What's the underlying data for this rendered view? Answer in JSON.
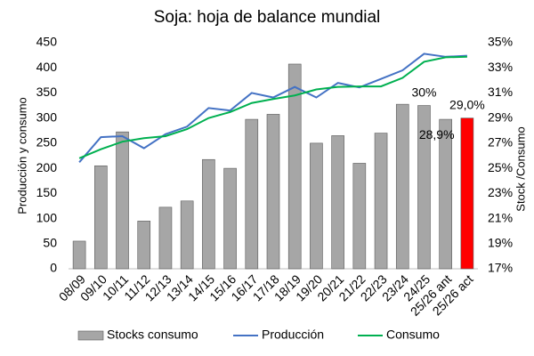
{
  "chart_data": {
    "type": "bar_line",
    "title": "Soja: hoja de balance mundial",
    "y_label": "Producción y consumo",
    "y2_label": "Stock /Consumo",
    "categories": [
      "08/09",
      "09/10",
      "10/11",
      "11/12",
      "12/13",
      "13/14",
      "14/15",
      "15/16",
      "16/17",
      "17/18",
      "18/19",
      "19/20",
      "20/21",
      "21/22",
      "22/23",
      "23/24",
      "24/25",
      "25/26 ant",
      "25/26 act"
    ],
    "series": [
      {
        "name": "Stocks consumo",
        "type": "bar",
        "axis": "y2",
        "color": "#a6a6a6",
        "colors": [
          "#a6a6a6",
          "#a6a6a6",
          "#a6a6a6",
          "#a6a6a6",
          "#a6a6a6",
          "#a6a6a6",
          "#a6a6a6",
          "#a6a6a6",
          "#a6a6a6",
          "#a6a6a6",
          "#a6a6a6",
          "#a6a6a6",
          "#a6a6a6",
          "#a6a6a6",
          "#a6a6a6",
          "#a6a6a6",
          "#a6a6a6",
          "#a6a6a6",
          "#ff0000"
        ],
        "values": [
          19.2,
          25.2,
          27.9,
          20.8,
          21.9,
          22.4,
          25.7,
          25.0,
          28.9,
          29.3,
          33.3,
          27.0,
          27.6,
          25.4,
          27.8,
          30.1,
          30,
          28.9,
          29.0
        ],
        "value_labels": [
          null,
          null,
          null,
          null,
          null,
          null,
          null,
          null,
          null,
          null,
          null,
          null,
          null,
          null,
          null,
          null,
          "30%",
          "28,9%",
          "29,0%"
        ]
      },
      {
        "name": "Producción",
        "type": "line",
        "color": "#4472c4",
        "values": [
          212,
          262,
          264,
          240,
          268,
          283,
          320,
          315,
          350,
          341,
          362,
          341,
          370,
          361,
          378,
          395,
          428,
          422,
          424
        ]
      },
      {
        "name": "Consumo",
        "type": "line",
        "color": "#00b050",
        "values": [
          220,
          238,
          253,
          260,
          264,
          278,
          300,
          312,
          330,
          338,
          345,
          357,
          362,
          363,
          363,
          380,
          412,
          421,
          422
        ]
      }
    ],
    "ylim": [
      0,
      450
    ],
    "yticks": [
      0,
      50,
      100,
      150,
      200,
      250,
      300,
      350,
      400,
      450
    ],
    "y2lim": [
      17,
      35
    ],
    "y2ticks": [
      {
        "value": 17,
        "label": "17%"
      },
      {
        "value": 19,
        "label": "19%"
      },
      {
        "value": 21,
        "label": "21%"
      },
      {
        "value": 23,
        "label": "23%"
      },
      {
        "value": 25,
        "label": "25%"
      },
      {
        "value": 27,
        "label": "27%"
      },
      {
        "value": 29,
        "label": "29%"
      },
      {
        "value": 31,
        "label": "31%"
      },
      {
        "value": 33,
        "label": "33%"
      },
      {
        "value": 35,
        "label": "35%"
      }
    ],
    "grid": false,
    "legend": "bottom"
  }
}
